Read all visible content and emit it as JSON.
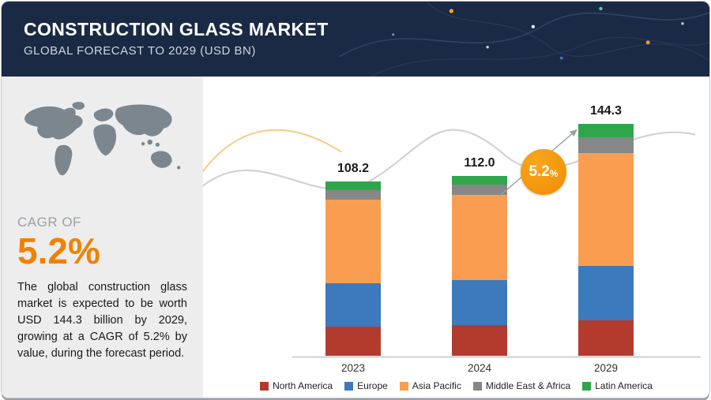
{
  "header": {
    "title": "CONSTRUCTION GLASS MARKET",
    "subtitle": "GLOBAL FORECAST TO 2029 (USD BN)"
  },
  "left_panel": {
    "cagr_label": "CAGR OF",
    "cagr_value": "5.2%",
    "description": "The global construction glass market is expected to be worth USD 144.3 billion by 2029, growing at a CAGR of 5.2% by value, during the forecast period."
  },
  "badge": {
    "value": "5.2",
    "percent": "%"
  },
  "chart_data": {
    "type": "bar",
    "stacked": true,
    "title": "Construction Glass Market, Global Forecast to 2029 (USD BN)",
    "categories": [
      "2023",
      "2024",
      "2029"
    ],
    "total_labels": [
      "108.2",
      "112.0",
      "144.3"
    ],
    "totals": [
      108.2,
      112.0,
      144.3
    ],
    "series": [
      {
        "name": "North America",
        "color": "#b33b2e",
        "values": [
          18.0,
          19.0,
          22.0
        ]
      },
      {
        "name": "Europe",
        "color": "#3d79bd",
        "values": [
          27.0,
          28.0,
          34.0
        ]
      },
      {
        "name": "Asia Pacific",
        "color": "#f99e51",
        "values": [
          52.0,
          53.0,
          70.0
        ]
      },
      {
        "name": "Middle East & Africa",
        "color": "#878787",
        "values": [
          6.0,
          6.5,
          10.0
        ]
      },
      {
        "name": "Latin America",
        "color": "#2fa64c",
        "values": [
          5.2,
          5.5,
          8.3
        ]
      }
    ],
    "ylabel": "USD BN",
    "legend_position": "bottom",
    "grid": false
  },
  "colors": {
    "header_bg": "#1b2a44",
    "panel_bg": "#ededee",
    "accent_orange": "#ef8200",
    "badge_orange": "#f49400",
    "map_gray": "#7c868e"
  },
  "icons": {
    "world_map": "world-map-silhouette"
  }
}
